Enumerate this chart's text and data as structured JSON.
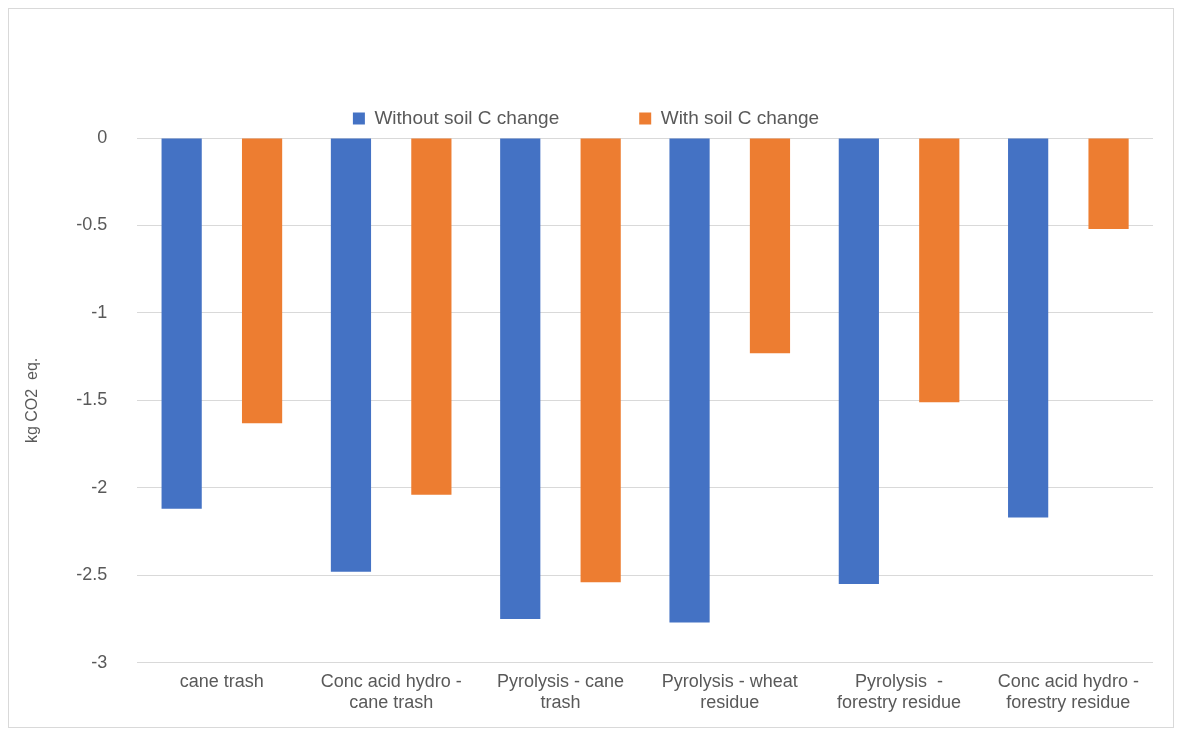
{
  "chart_data": {
    "type": "bar",
    "ylabel": "kg CO2  eq.",
    "categories": [
      "cane trash",
      "Conc acid hydro - cane trash",
      "Pyrolysis - cane trash",
      "Pyrolysis - wheat residue",
      "Pyrolysis  - forestry residue",
      "Conc acid hydro - forestry residue"
    ],
    "series": [
      {
        "name": "Without soil C change",
        "color": "#4472c4",
        "values": [
          -2.12,
          -2.48,
          -2.75,
          -2.77,
          -2.55,
          -2.17
        ]
      },
      {
        "name": "With soil C change",
        "color": "#ed7d31",
        "values": [
          -1.63,
          -2.04,
          -2.54,
          -1.23,
          -1.51,
          -0.52
        ]
      }
    ],
    "ylim": [
      -3,
      0
    ],
    "yticks": [
      -3,
      -2.5,
      -2,
      -1.5,
      -1,
      -0.5,
      0
    ],
    "grid": "y",
    "legend": "top"
  }
}
